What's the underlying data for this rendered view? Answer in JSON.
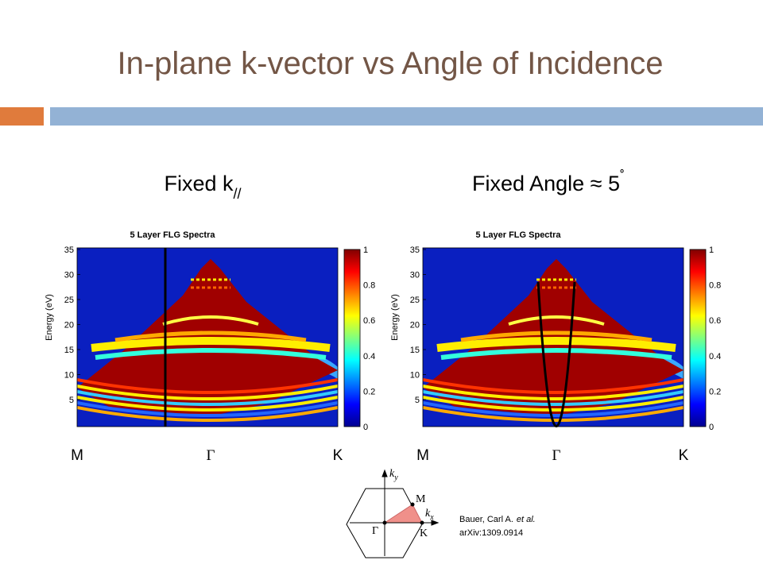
{
  "title": "In-plane k-vector vs Angle of Incidence",
  "panels": [
    {
      "heading": "Fixed k",
      "heading_script": "//",
      "plot_title": "5 Layer FLG Spectra",
      "y_label": "Energy (eV)",
      "y_ticks": [
        "35",
        "30",
        "25",
        "20",
        "15",
        "10",
        "5"
      ],
      "colorbar_ticks": [
        "1",
        "0.8",
        "0.6",
        "0.4",
        "0.2",
        "0"
      ],
      "x_labels": [
        "M",
        "Γ",
        "K"
      ]
    },
    {
      "heading": "Fixed Angle ≈ 5",
      "heading_script": "˚",
      "plot_title": "5 Layer FLG Spectra",
      "y_label": "Energy (eV)",
      "y_ticks": [
        "35",
        "30",
        "25",
        "20",
        "15",
        "10",
        "5"
      ],
      "colorbar_ticks": [
        "1",
        "0.8",
        "0.6",
        "0.4",
        "0.2",
        "0"
      ],
      "x_labels": [
        "M",
        "Γ",
        "K"
      ]
    }
  ],
  "diagram": {
    "ky": {
      "base": "k",
      "sub": "y"
    },
    "kx": {
      "base": "k",
      "sub": "x"
    },
    "points": [
      "M",
      "Γ",
      "K"
    ]
  },
  "citation": {
    "authors": "Bauer, Carl A.",
    "etal": "et al.",
    "ref": "arXiv:1309.0914"
  }
}
